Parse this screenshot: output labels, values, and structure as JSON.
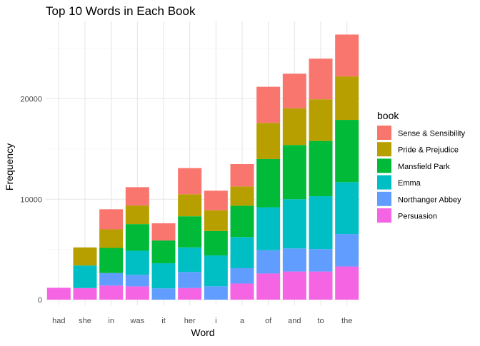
{
  "chart_data": {
    "type": "bar",
    "stacked": true,
    "title": "Top 10 Words in Each Book",
    "xlabel": "Word",
    "ylabel": "Frequency",
    "ylim": [
      0,
      27000
    ],
    "yticks": [
      0,
      10000,
      20000
    ],
    "grid": true,
    "legend": {
      "title": "book",
      "position": "right"
    },
    "categories": [
      "had",
      "she",
      "in",
      "was",
      "it",
      "her",
      "i",
      "a",
      "of",
      "and",
      "to",
      "the"
    ],
    "series": [
      {
        "name": "Persuasion",
        "color": "#F564E3",
        "values": [
          1180,
          1150,
          1400,
          1320,
          0,
          1150,
          0,
          1600,
          2600,
          2800,
          2800,
          3300
        ]
      },
      {
        "name": "Northanger Abbey",
        "color": "#619CFF",
        "values": [
          0,
          0,
          1250,
          1150,
          1120,
          1600,
          1330,
          1530,
          2320,
          2300,
          2230,
          3230
        ]
      },
      {
        "name": "Emma",
        "color": "#00BFC4",
        "values": [
          0,
          2250,
          0,
          2400,
          2500,
          2450,
          3070,
          3100,
          4280,
          4900,
          5270,
          5170
        ]
      },
      {
        "name": "Mansfield Park",
        "color": "#00BA38",
        "values": [
          0,
          0,
          2500,
          2650,
          2270,
          3100,
          2430,
          3120,
          4800,
          5400,
          5500,
          6200
        ]
      },
      {
        "name": "Pride & Prejudice",
        "color": "#B79F00",
        "values": [
          0,
          1800,
          1850,
          1850,
          0,
          2200,
          2070,
          1920,
          3600,
          3650,
          4150,
          4330
        ]
      },
      {
        "name": "Sense & Sensibility",
        "color": "#F8766D",
        "values": [
          0,
          0,
          2000,
          1830,
          1710,
          2600,
          1950,
          2230,
          3600,
          3450,
          4050,
          4170
        ]
      }
    ]
  }
}
